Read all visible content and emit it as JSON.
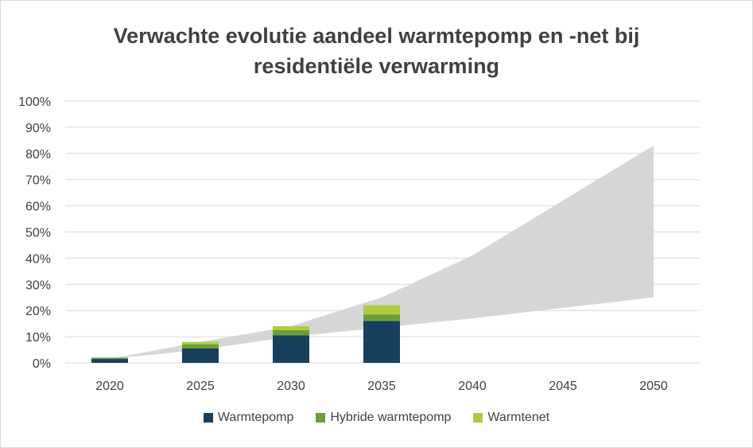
{
  "chart_data": {
    "type": "bar",
    "title": [
      "Verwachte evolutie aandeel warmtepomp en -net bij",
      "residentiële verwarming"
    ],
    "xlabel": "",
    "ylabel": "",
    "categories": [
      "2020",
      "2025",
      "2030",
      "2035",
      "2040",
      "2045",
      "2050"
    ],
    "stacked": true,
    "series": [
      {
        "name": "Warmtepomp",
        "color": "#17405E",
        "values": [
          1.5,
          5.5,
          10.5,
          16,
          null,
          null,
          null
        ]
      },
      {
        "name": "Hybride warmtepomp",
        "color": "#6B9E3A",
        "values": [
          0.5,
          1.5,
          2.0,
          2.5,
          null,
          null,
          null
        ]
      },
      {
        "name": "Warmtenet",
        "color": "#AFCB3F",
        "values": [
          0,
          1.0,
          1.5,
          3.5,
          null,
          null,
          null
        ]
      }
    ],
    "range_band": {
      "color": "#D6D6D6",
      "x": [
        "2020",
        "2025",
        "2030",
        "2035",
        "2040",
        "2045",
        "2050"
      ],
      "upper": [
        1.5,
        8,
        14,
        25,
        41,
        62,
        83
      ],
      "lower": [
        1.5,
        5,
        10,
        13.5,
        17,
        21,
        25
      ]
    },
    "ylim": [
      0,
      100
    ],
    "yticks": [
      0,
      10,
      20,
      30,
      40,
      50,
      60,
      70,
      80,
      90,
      100
    ],
    "ytick_labels": [
      "0%",
      "10%",
      "20%",
      "30%",
      "40%",
      "50%",
      "60%",
      "70%",
      "80%",
      "90%",
      "100%"
    ],
    "grid": true,
    "legend_position": "bottom"
  }
}
